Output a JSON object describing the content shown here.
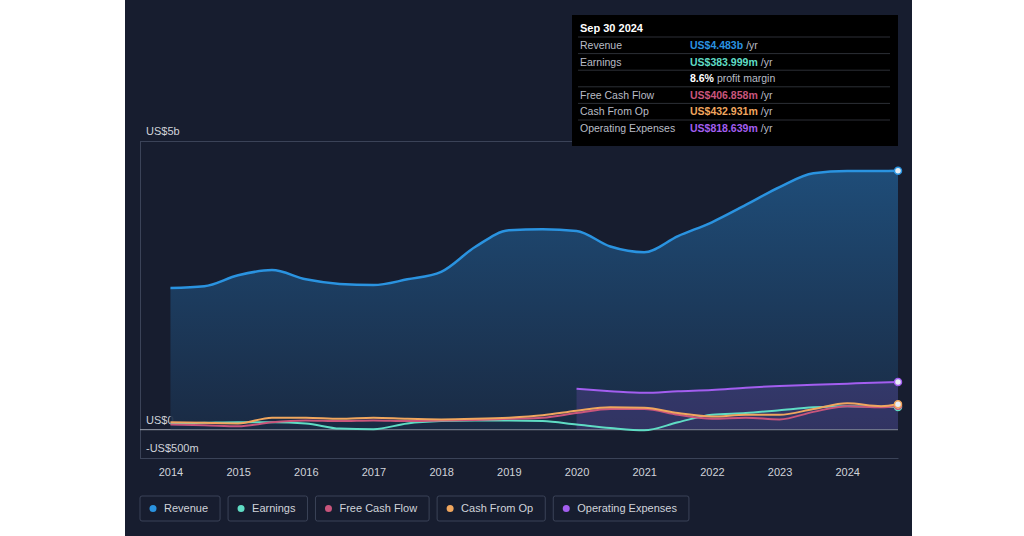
{
  "chart_data": {
    "type": "line",
    "x": [
      2014,
      2014.5,
      2015,
      2015.5,
      2016,
      2016.5,
      2017,
      2017.5,
      2018,
      2018.5,
      2019,
      2019.5,
      2020,
      2020.5,
      2021,
      2021.5,
      2022,
      2022.5,
      2023,
      2023.5,
      2024,
      2024.5,
      2024.75
    ],
    "xlim": [
      2013.55,
      2024.75
    ],
    "xticks": [
      2014,
      2015,
      2016,
      2017,
      2018,
      2019,
      2020,
      2021,
      2022,
      2023,
      2024
    ],
    "ylim": [
      -0.5,
      5
    ],
    "yticks": [
      {
        "value": -0.5,
        "label": "-US$500m"
      },
      {
        "value": 0,
        "label": "US$0"
      },
      {
        "value": 5,
        "label": "US$5b"
      }
    ],
    "grid": true,
    "legend": "bottom-left",
    "series": [
      {
        "name": "Revenue",
        "color": "#2a93e0",
        "type": "area",
        "values": [
          2.45,
          2.48,
          2.67,
          2.76,
          2.6,
          2.52,
          2.5,
          2.6,
          2.73,
          3.16,
          3.45,
          3.47,
          3.44,
          3.17,
          3.07,
          3.35,
          3.59,
          3.89,
          4.2,
          4.44,
          4.48,
          4.48,
          4.483
        ]
      },
      {
        "name": "Earnings",
        "color": "#5fdcc4",
        "type": "line",
        "values": [
          0.1,
          0.11,
          0.12,
          0.12,
          0.1,
          0.01,
          0.0,
          0.1,
          0.14,
          0.15,
          0.15,
          0.14,
          0.08,
          0.02,
          -0.02,
          0.12,
          0.25,
          0.28,
          0.33,
          0.38,
          0.4,
          0.39,
          0.384
        ]
      },
      {
        "name": "Free Cash Flow",
        "color": "#c9557c",
        "type": "line",
        "values": [
          0.08,
          0.07,
          0.05,
          0.12,
          0.15,
          0.14,
          0.15,
          0.14,
          0.15,
          0.16,
          0.18,
          0.2,
          0.28,
          0.35,
          0.35,
          0.25,
          0.18,
          0.2,
          0.17,
          0.3,
          0.4,
          0.38,
          0.407
        ]
      },
      {
        "name": "Cash From Op",
        "color": "#f0a65e",
        "type": "line",
        "values": [
          0.12,
          0.11,
          0.1,
          0.2,
          0.2,
          0.18,
          0.2,
          0.18,
          0.17,
          0.18,
          0.2,
          0.24,
          0.32,
          0.38,
          0.37,
          0.28,
          0.22,
          0.25,
          0.25,
          0.35,
          0.45,
          0.4,
          0.433
        ]
      },
      {
        "name": "Operating Expenses",
        "color": "#a35ef0",
        "type": "area",
        "values": [
          null,
          null,
          null,
          null,
          null,
          null,
          null,
          null,
          null,
          null,
          null,
          null,
          0.7,
          0.66,
          0.63,
          0.66,
          0.68,
          0.72,
          0.75,
          0.77,
          0.79,
          0.81,
          0.819
        ]
      }
    ],
    "annotations": [
      {
        "title": "Sep 30 2024",
        "rows": [
          {
            "label": "Revenue",
            "value": "US$4.483b",
            "unit": "/yr"
          },
          {
            "label": "Earnings",
            "value": "US$383.999m",
            "unit": "/yr"
          },
          {
            "label": "Free Cash Flow",
            "value": "US$406.858m",
            "unit": "/yr"
          },
          {
            "label": "Cash From Op",
            "value": "US$432.931m",
            "unit": "/yr"
          },
          {
            "label": "Operating Expenses",
            "value": "US$818.639m",
            "unit": "/yr"
          }
        ],
        "margin": {
          "value": "8.6%",
          "text": "profit margin"
        }
      }
    ]
  }
}
